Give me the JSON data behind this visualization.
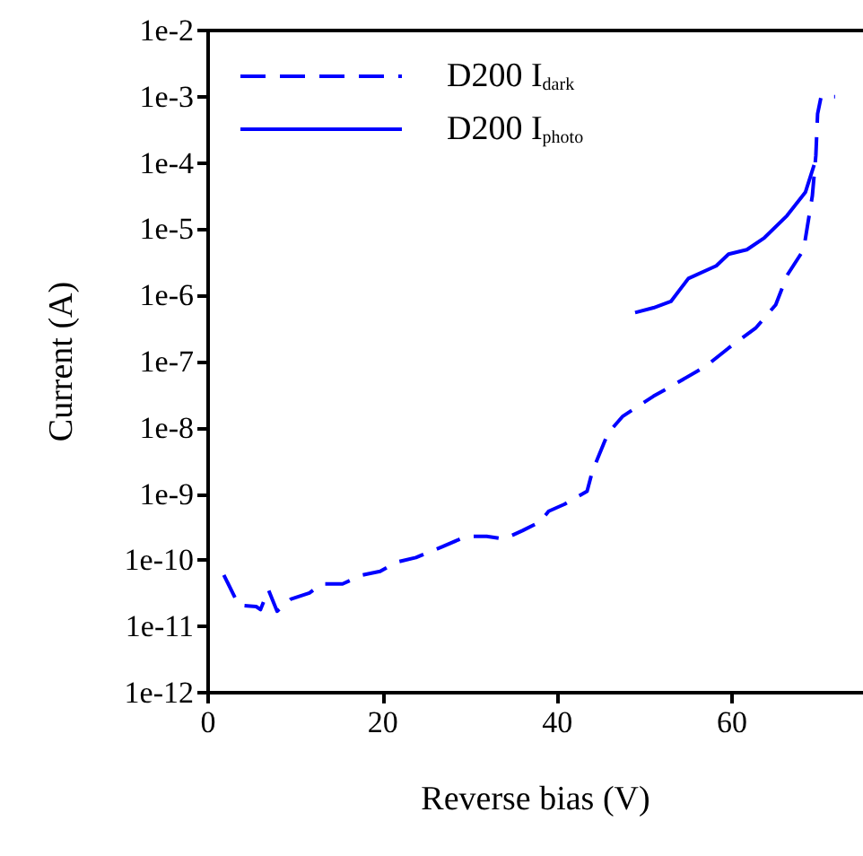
{
  "chart_data": {
    "type": "line",
    "xlabel": "Reverse bias (V)",
    "ylabel": "Current (A)",
    "xlim": [
      0,
      75
    ],
    "xticks": [
      0,
      20,
      40,
      60
    ],
    "ylim": [
      1e-12,
      0.01
    ],
    "log": true,
    "yticks": [
      {
        "value": 1e-12,
        "label": "1e-12"
      },
      {
        "value": 1e-11,
        "label": "1e-11"
      },
      {
        "value": 1e-10,
        "label": "1e-10"
      },
      {
        "value": 1e-09,
        "label": "1e-9"
      },
      {
        "value": 1e-08,
        "label": "1e-8"
      },
      {
        "value": 1e-07,
        "label": "1e-7"
      },
      {
        "value": 1e-06,
        "label": "1e-6"
      },
      {
        "value": 1e-05,
        "label": "1e-5"
      },
      {
        "value": 0.0001,
        "label": "1e-4"
      },
      {
        "value": 0.001,
        "label": "1e-3"
      },
      {
        "value": 0.01,
        "label": "1e-2"
      }
    ],
    "grid": false,
    "legend": "top left",
    "marker": "none",
    "series": [
      {
        "name": "D200 I$_{dark}$",
        "color": "#0000ff",
        "line_style": "dashed",
        "x": [
          1.8,
          3.5,
          5.5,
          6,
          6.9,
          7.9,
          9.5,
          11.6,
          13,
          15.4,
          17.7,
          19.7,
          21.5,
          23.8,
          26.8,
          29.6,
          31.9,
          33.9,
          36,
          38,
          39,
          40.8,
          43.4,
          44,
          45.8,
          47.5,
          51,
          53.5,
          57,
          59.6,
          62.7,
          65,
          66.3,
          68.2,
          69.2,
          69.6,
          69.8,
          70.2,
          71.8
        ],
        "values": [
          6e-11,
          2.1e-11,
          2e-11,
          1.8e-11,
          3.6e-11,
          1.7e-11,
          2.6e-11,
          3.2e-11,
          4.4e-11,
          4.4e-11,
          6e-11,
          6.8e-11,
          9.3e-11,
          1.1e-10,
          1.6e-10,
          2.3e-10,
          2.3e-10,
          2.1e-10,
          2.8e-10,
          3.8e-10,
          5.5e-10,
          7e-10,
          1.1e-09,
          2.2e-09,
          8.3e-09,
          1.5e-08,
          3e-08,
          4.6e-08,
          8.5e-08,
          1.6e-07,
          3.2e-07,
          7.2e-07,
          2e-06,
          4.9e-06,
          3.2e-05,
          0.00013,
          0.00055,
          0.001,
          0.001
        ]
      },
      {
        "name": "D200 I$_{photo}$",
        "color": "#0000ff",
        "line_style": "solid",
        "x": [
          48.9,
          51,
          53,
          55,
          58.2,
          59.6,
          61.7,
          63.7,
          66.3,
          68.4,
          69.4
        ],
        "values": [
          5.5e-07,
          6.5e-07,
          8.1e-07,
          1.8e-06,
          2.8e-06,
          4.2e-06,
          4.9e-06,
          7.4e-06,
          1.6e-05,
          3.6e-05,
          9.3e-05
        ]
      }
    ]
  }
}
